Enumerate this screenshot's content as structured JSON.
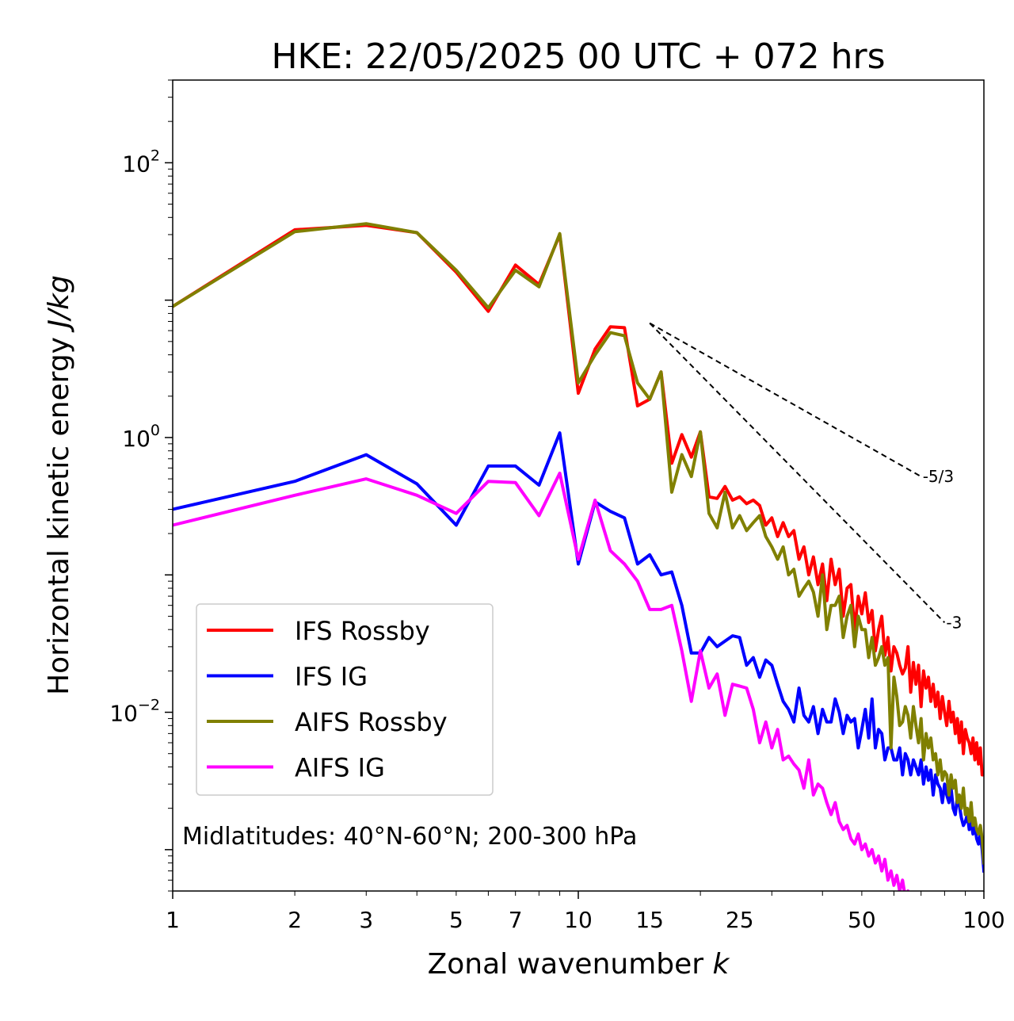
{
  "chart_data": {
    "type": "line",
    "title": "HKE: 22/05/2025 00 UTC + 072 hrs",
    "xlabel": "Zonal wavenumber",
    "xlabel_var": "k",
    "ylabel": "Horizontal kinetic energy",
    "ylabel_unit": "J/kg",
    "xscale": "log",
    "yscale": "log",
    "xlim": [
      1,
      100
    ],
    "ylim": [
      0.0005,
      400
    ],
    "x_ticks": [
      {
        "value": 1,
        "label": "1"
      },
      {
        "value": 2,
        "label": "2"
      },
      {
        "value": 3,
        "label": "3"
      },
      {
        "value": 5,
        "label": "5"
      },
      {
        "value": 7,
        "label": "7"
      },
      {
        "value": 10,
        "label": "10"
      },
      {
        "value": 15,
        "label": "15"
      },
      {
        "value": 25,
        "label": "25"
      },
      {
        "value": 50,
        "label": "50"
      },
      {
        "value": 100,
        "label": "100"
      }
    ],
    "y_ticks": [
      {
        "value": 100,
        "base": "10",
        "exp": "2"
      },
      {
        "value": 1,
        "base": "10",
        "exp": "0"
      },
      {
        "value": 0.01,
        "base": "10",
        "exp": "−2"
      }
    ],
    "grid": false,
    "legend_position": "lower-left",
    "series": [
      {
        "name": "IFS Rossby",
        "color": "#ff0000",
        "x": [
          1,
          2,
          3,
          4,
          5,
          6,
          7,
          8,
          9,
          10,
          11,
          12,
          13,
          14,
          15,
          16,
          17,
          18,
          19,
          20,
          21,
          22,
          23,
          24,
          25,
          26,
          27,
          28,
          29,
          30,
          31,
          32,
          33,
          34,
          35,
          36,
          37,
          38,
          39,
          40,
          41,
          42,
          43,
          44,
          45,
          46,
          47,
          48,
          49,
          50,
          51,
          52,
          53,
          54,
          55,
          56,
          57,
          58,
          59,
          60,
          61,
          62,
          63,
          64,
          65,
          66,
          67,
          68,
          69,
          70,
          71,
          72,
          73,
          74,
          75,
          76,
          77,
          78,
          79,
          80,
          81,
          82,
          83,
          84,
          85,
          86,
          87,
          88,
          89,
          90,
          91,
          92,
          93,
          94,
          95,
          96,
          97,
          98,
          99,
          100
        ],
        "y": [
          9.0,
          32.5,
          35.0,
          31.0,
          16.0,
          8.3,
          18.0,
          13.0,
          30.0,
          2.1,
          4.4,
          6.4,
          6.3,
          1.7,
          1.9,
          3.0,
          0.65,
          1.05,
          0.72,
          1.1,
          0.37,
          0.36,
          0.44,
          0.35,
          0.37,
          0.33,
          0.35,
          0.32,
          0.23,
          0.26,
          0.19,
          0.24,
          0.19,
          0.21,
          0.13,
          0.16,
          0.1,
          0.135,
          0.085,
          0.12,
          0.065,
          0.13,
          0.085,
          0.11,
          0.05,
          0.08,
          0.085,
          0.04,
          0.07,
          0.052,
          0.074,
          0.045,
          0.055,
          0.028,
          0.04,
          0.05,
          0.026,
          0.035,
          0.02,
          0.03,
          0.027,
          0.022,
          0.019,
          0.021,
          0.03,
          0.014,
          0.023,
          0.016,
          0.022,
          0.011,
          0.02,
          0.015,
          0.018,
          0.012,
          0.016,
          0.011,
          0.014,
          0.009,
          0.013,
          0.01,
          0.008,
          0.012,
          0.0085,
          0.01,
          0.007,
          0.009,
          0.006,
          0.0085,
          0.005,
          0.0075,
          0.0065,
          0.006,
          0.005,
          0.0065,
          0.0045,
          0.006,
          0.0042,
          0.0055,
          0.0035,
          0.0035
        ]
      },
      {
        "name": "IFS IG",
        "color": "#0000ff",
        "x": [
          1,
          2,
          3,
          4,
          5,
          6,
          7,
          8,
          9,
          10,
          11,
          12,
          13,
          14,
          15,
          16,
          17,
          18,
          19,
          20,
          21,
          22,
          23,
          24,
          25,
          26,
          27,
          28,
          29,
          30,
          31,
          32,
          33,
          34,
          35,
          36,
          37,
          38,
          39,
          40,
          41,
          42,
          43,
          44,
          45,
          46,
          47,
          48,
          49,
          50,
          51,
          52,
          53,
          54,
          55,
          56,
          57,
          58,
          59,
          60,
          61,
          62,
          63,
          64,
          65,
          66,
          67,
          68,
          69,
          70,
          71,
          72,
          73,
          74,
          75,
          76,
          77,
          78,
          79,
          80,
          81,
          82,
          83,
          84,
          85,
          86,
          87,
          88,
          89,
          90,
          91,
          92,
          93,
          94,
          95,
          96,
          97,
          98,
          99,
          100
        ],
        "y": [
          0.3,
          0.48,
          0.75,
          0.46,
          0.23,
          0.62,
          0.62,
          0.45,
          1.08,
          0.12,
          0.34,
          0.29,
          0.26,
          0.12,
          0.14,
          0.1,
          0.105,
          0.06,
          0.027,
          0.027,
          0.035,
          0.03,
          0.033,
          0.036,
          0.035,
          0.022,
          0.025,
          0.018,
          0.024,
          0.022,
          0.016,
          0.012,
          0.0105,
          0.0085,
          0.015,
          0.0095,
          0.0085,
          0.011,
          0.007,
          0.0105,
          0.0085,
          0.0085,
          0.0125,
          0.01,
          0.007,
          0.0095,
          0.0085,
          0.009,
          0.0055,
          0.0075,
          0.0105,
          0.0065,
          0.0125,
          0.0055,
          0.0075,
          0.007,
          0.0045,
          0.0055,
          0.0055,
          0.0045,
          0.0045,
          0.0055,
          0.0035,
          0.005,
          0.0045,
          0.0035,
          0.0045,
          0.004,
          0.0035,
          0.0045,
          0.003,
          0.004,
          0.0032,
          0.0038,
          0.0025,
          0.0035,
          0.003,
          0.0028,
          0.0022,
          0.003,
          0.0025,
          0.0022,
          0.0028,
          0.002,
          0.0018,
          0.0024,
          0.0021,
          0.0017,
          0.0015,
          0.0016,
          0.0018,
          0.0014,
          0.0016,
          0.0013,
          0.0015,
          0.0012,
          0.0011,
          0.0013,
          0.001,
          0.0007
        ]
      },
      {
        "name": "AIFS Rossby",
        "color": "#808000",
        "x": [
          1,
          2,
          3,
          4,
          5,
          6,
          7,
          8,
          9,
          10,
          11,
          12,
          13,
          14,
          15,
          16,
          17,
          18,
          19,
          20,
          21,
          22,
          23,
          24,
          25,
          26,
          27,
          28,
          29,
          30,
          31,
          32,
          33,
          34,
          35,
          36,
          37,
          38,
          39,
          40,
          41,
          42,
          43,
          44,
          45,
          46,
          47,
          48,
          49,
          50,
          51,
          52,
          53,
          54,
          55,
          56,
          57,
          58,
          59,
          60,
          61,
          62,
          63,
          64,
          65,
          66,
          67,
          68,
          69,
          70,
          71,
          72,
          73,
          74,
          75,
          76,
          77,
          78,
          79,
          80,
          81,
          82,
          83,
          84,
          85,
          86,
          87,
          88,
          89,
          90,
          91,
          92,
          93,
          94,
          95,
          96,
          97,
          98,
          99,
          100
        ],
        "y": [
          9.0,
          31.5,
          36.0,
          31.0,
          16.5,
          8.8,
          16.5,
          12.5,
          30.5,
          2.5,
          4.0,
          5.8,
          5.5,
          2.5,
          1.9,
          3.0,
          0.4,
          0.75,
          0.52,
          1.1,
          0.28,
          0.22,
          0.4,
          0.22,
          0.27,
          0.21,
          0.24,
          0.27,
          0.19,
          0.16,
          0.13,
          0.16,
          0.1,
          0.11,
          0.07,
          0.08,
          0.09,
          0.075,
          0.05,
          0.1,
          0.04,
          0.06,
          0.06,
          0.07,
          0.035,
          0.05,
          0.06,
          0.03,
          0.05,
          0.04,
          0.04,
          0.025,
          0.035,
          0.022,
          0.025,
          0.03,
          0.022,
          0.025,
          0.0055,
          0.018,
          0.013,
          0.008,
          0.0085,
          0.011,
          0.0095,
          0.0065,
          0.011,
          0.008,
          0.006,
          0.009,
          0.0045,
          0.007,
          0.0055,
          0.0065,
          0.0045,
          0.005,
          0.0035,
          0.0045,
          0.0032,
          0.0037,
          0.0035,
          0.0025,
          0.0035,
          0.0028,
          0.0032,
          0.0022,
          0.0025,
          0.002,
          0.0028,
          0.0018,
          0.002,
          0.0016,
          0.0022,
          0.0015,
          0.0017,
          0.0014,
          0.0013,
          0.0015,
          0.0012,
          0.0008
        ]
      },
      {
        "name": "AIFS IG",
        "color": "#ff00ff",
        "x": [
          1,
          2,
          3,
          4,
          5,
          6,
          7,
          8,
          9,
          10,
          11,
          12,
          13,
          14,
          15,
          16,
          17,
          18,
          19,
          20,
          21,
          22,
          23,
          24,
          25,
          26,
          27,
          28,
          29,
          30,
          31,
          32,
          33,
          34,
          35,
          36,
          37,
          38,
          39,
          40,
          41,
          42,
          43,
          44,
          45,
          46,
          47,
          48,
          49,
          50,
          51,
          52,
          53,
          54,
          55,
          56,
          57,
          58,
          59,
          60,
          61,
          62,
          63,
          64,
          65,
          66,
          67,
          68,
          69,
          70,
          71,
          72
        ],
        "y": [
          0.23,
          0.38,
          0.5,
          0.38,
          0.28,
          0.48,
          0.47,
          0.27,
          0.55,
          0.13,
          0.35,
          0.15,
          0.12,
          0.09,
          0.056,
          0.056,
          0.06,
          0.028,
          0.012,
          0.028,
          0.015,
          0.019,
          0.0095,
          0.016,
          0.0155,
          0.015,
          0.0105,
          0.006,
          0.0085,
          0.0055,
          0.0075,
          0.0045,
          0.0048,
          0.0042,
          0.0038,
          0.0028,
          0.0045,
          0.0025,
          0.003,
          0.0028,
          0.0022,
          0.0018,
          0.0022,
          0.0016,
          0.0014,
          0.0015,
          0.0012,
          0.0011,
          0.0013,
          0.001,
          0.0011,
          0.0009,
          0.001,
          0.0008,
          0.0009,
          0.0007,
          0.00085,
          0.0006,
          0.0007,
          0.00055,
          0.00065,
          0.0005,
          0.0006,
          0.00045,
          0.0005,
          0.0004,
          0.00045,
          0.00035,
          0.0004,
          0.0003,
          0.00035,
          0.0003
        ]
      }
    ],
    "reference_lines": [
      {
        "label": "-5/3",
        "slope": -1.6667,
        "x0": 15,
        "y0": 6.8,
        "x1": 70,
        "y1": 0.52
      },
      {
        "label": "-3",
        "slope": -3,
        "x0": 15,
        "y0": 6.8,
        "x1": 80,
        "y1": 0.045
      }
    ],
    "annotation": "Midlatitudes: 40°N-60°N; 200-300 hPa"
  }
}
